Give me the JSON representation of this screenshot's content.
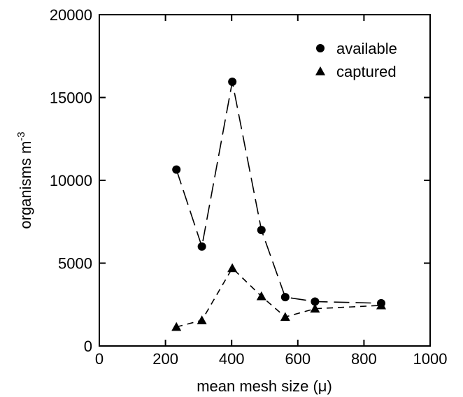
{
  "chart_data": {
    "type": "line",
    "title": "",
    "xlabel": "mean mesh size (μ)",
    "ylabel": "organisms m-3",
    "xlim": [
      0,
      1000
    ],
    "ylim": [
      0,
      20000
    ],
    "xticks": [
      0,
      200,
      400,
      600,
      800,
      1000
    ],
    "yticks": [
      0,
      5000,
      10000,
      15000,
      20000
    ],
    "grid": false,
    "legend": "top-right",
    "series": [
      {
        "name": "available",
        "marker": "circle",
        "line": "long-dash",
        "x": [
          233,
          310,
          402,
          490,
          562,
          652,
          852
        ],
        "y": [
          10650,
          6000,
          15950,
          7000,
          2950,
          2680,
          2580
        ]
      },
      {
        "name": "captured",
        "marker": "triangle",
        "line": "short-dash",
        "x": [
          233,
          310,
          402,
          490,
          562,
          652,
          852
        ],
        "y": [
          1150,
          1550,
          4700,
          3000,
          1750,
          2250,
          2450
        ]
      }
    ]
  }
}
